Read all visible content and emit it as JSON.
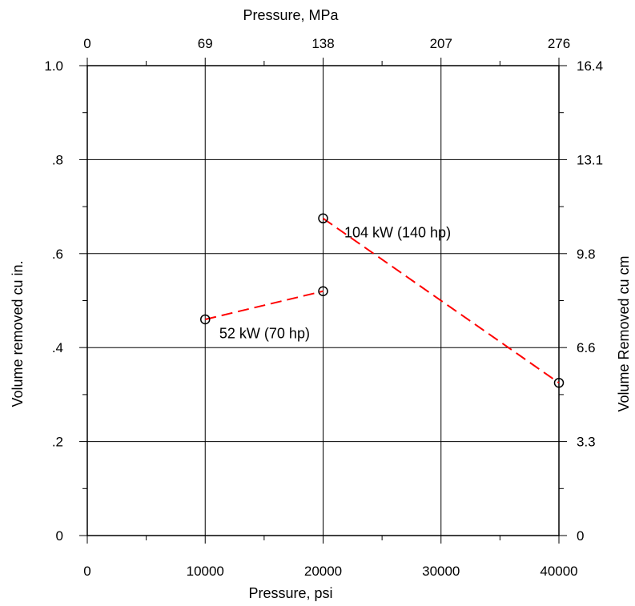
{
  "chart_data": {
    "type": "line",
    "title": "",
    "xlabel": "Pressure, psi",
    "ylabel": "Volume removed cu in.",
    "top_xlabel": "Pressure, MPa",
    "right_ylabel": "Volume Removed cu cm",
    "xlim": [
      0,
      40000
    ],
    "ylim": [
      0,
      1.0
    ],
    "grid": true,
    "x_ticks": [
      {
        "value": 0,
        "label": "0"
      },
      {
        "value": 10000,
        "label": "10000"
      },
      {
        "value": 20000,
        "label": "20000"
      },
      {
        "value": 30000,
        "label": "30000"
      },
      {
        "value": 40000,
        "label": "40000"
      }
    ],
    "y_ticks": [
      {
        "value": 0,
        "label": "0"
      },
      {
        "value": 0.2,
        "label": ".2"
      },
      {
        "value": 0.4,
        "label": ".4"
      },
      {
        "value": 0.6,
        "label": ".6"
      },
      {
        "value": 0.8,
        "label": ".8"
      },
      {
        "value": 1.0,
        "label": "1.0"
      }
    ],
    "top_ticks": [
      {
        "value": 0,
        "label": "0"
      },
      {
        "value": 10000,
        "label": "69"
      },
      {
        "value": 20000,
        "label": "138"
      },
      {
        "value": 30000,
        "label": "207"
      },
      {
        "value": 40000,
        "label": "276"
      }
    ],
    "right_ticks": [
      {
        "value": 0,
        "label": "0"
      },
      {
        "value": 0.2,
        "label": "3.3"
      },
      {
        "value": 0.4,
        "label": "6.6"
      },
      {
        "value": 0.6,
        "label": "9.8"
      },
      {
        "value": 0.8,
        "label": "13.1"
      },
      {
        "value": 1.0,
        "label": "16.4"
      }
    ],
    "series": [
      {
        "name": "52 kW (70 hp)",
        "color": "#ff0000",
        "line_style": "dashed",
        "marker": "open-circle",
        "x": [
          10000,
          20000
        ],
        "y": [
          0.46,
          0.52
        ]
      },
      {
        "name": "104 kW (140 hp)",
        "color": "#ff0000",
        "line_style": "dashed",
        "marker": "open-circle",
        "x": [
          20000,
          40000
        ],
        "y": [
          0.675,
          0.325
        ]
      }
    ],
    "annotations": [
      {
        "text": "52 kW (70 hp)",
        "x": 11200,
        "y": 0.43
      },
      {
        "text": "104 kW (140 hp)",
        "x": 21800,
        "y": 0.645
      }
    ]
  }
}
